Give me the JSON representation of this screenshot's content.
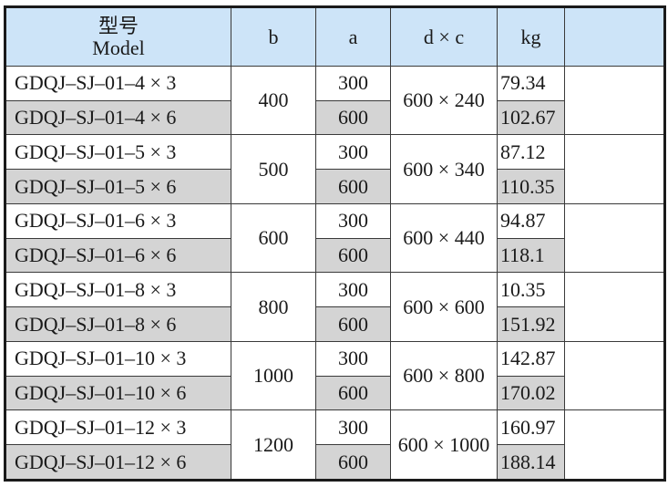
{
  "header": {
    "model_cn": "型号",
    "model_en": "Model",
    "b": "b",
    "a": "a",
    "dxc": "d × c",
    "kg": "kg",
    "extra": ""
  },
  "groups": [
    {
      "b": "400",
      "dxc": "600 × 240",
      "rows": [
        {
          "model": "GDQJ–SJ–01–4 × 3",
          "a": "300",
          "kg": "79.34"
        },
        {
          "model": "GDQJ–SJ–01–4 × 6",
          "a": "600",
          "kg": "102.67"
        }
      ]
    },
    {
      "b": "500",
      "dxc": "600 × 340",
      "rows": [
        {
          "model": "GDQJ–SJ–01–5 × 3",
          "a": "300",
          "kg": "87.12"
        },
        {
          "model": "GDQJ–SJ–01–5 × 6",
          "a": "600",
          "kg": "110.35"
        }
      ]
    },
    {
      "b": "600",
      "dxc": "600 × 440",
      "rows": [
        {
          "model": "GDQJ–SJ–01–6 × 3",
          "a": "300",
          "kg": "94.87"
        },
        {
          "model": "GDQJ–SJ–01–6 × 6",
          "a": "600",
          "kg": "118.1"
        }
      ]
    },
    {
      "b": "800",
      "dxc": "600 × 600",
      "rows": [
        {
          "model": "GDQJ–SJ–01–8 × 3",
          "a": "300",
          "kg": "10.35"
        },
        {
          "model": "GDQJ–SJ–01–8 × 6",
          "a": "600",
          "kg": "151.92"
        }
      ]
    },
    {
      "b": "1000",
      "dxc": "600 × 800",
      "rows": [
        {
          "model": "GDQJ–SJ–01–10 × 3",
          "a": "300",
          "kg": "142.87"
        },
        {
          "model": "GDQJ–SJ–01–10 × 6",
          "a": "600",
          "kg": "170.02"
        }
      ]
    },
    {
      "b": "1200",
      "dxc": "600 × 1000",
      "rows": [
        {
          "model": "GDQJ–SJ–01–12 × 3",
          "a": "300",
          "kg": "160.97"
        },
        {
          "model": "GDQJ–SJ–01–12 × 6",
          "a": "600",
          "kg": "188.14"
        }
      ]
    }
  ],
  "colors": {
    "header_bg": "#cde4f8",
    "shaded_row_bg": "#d4d4d4",
    "border": "#1a1a1a"
  }
}
